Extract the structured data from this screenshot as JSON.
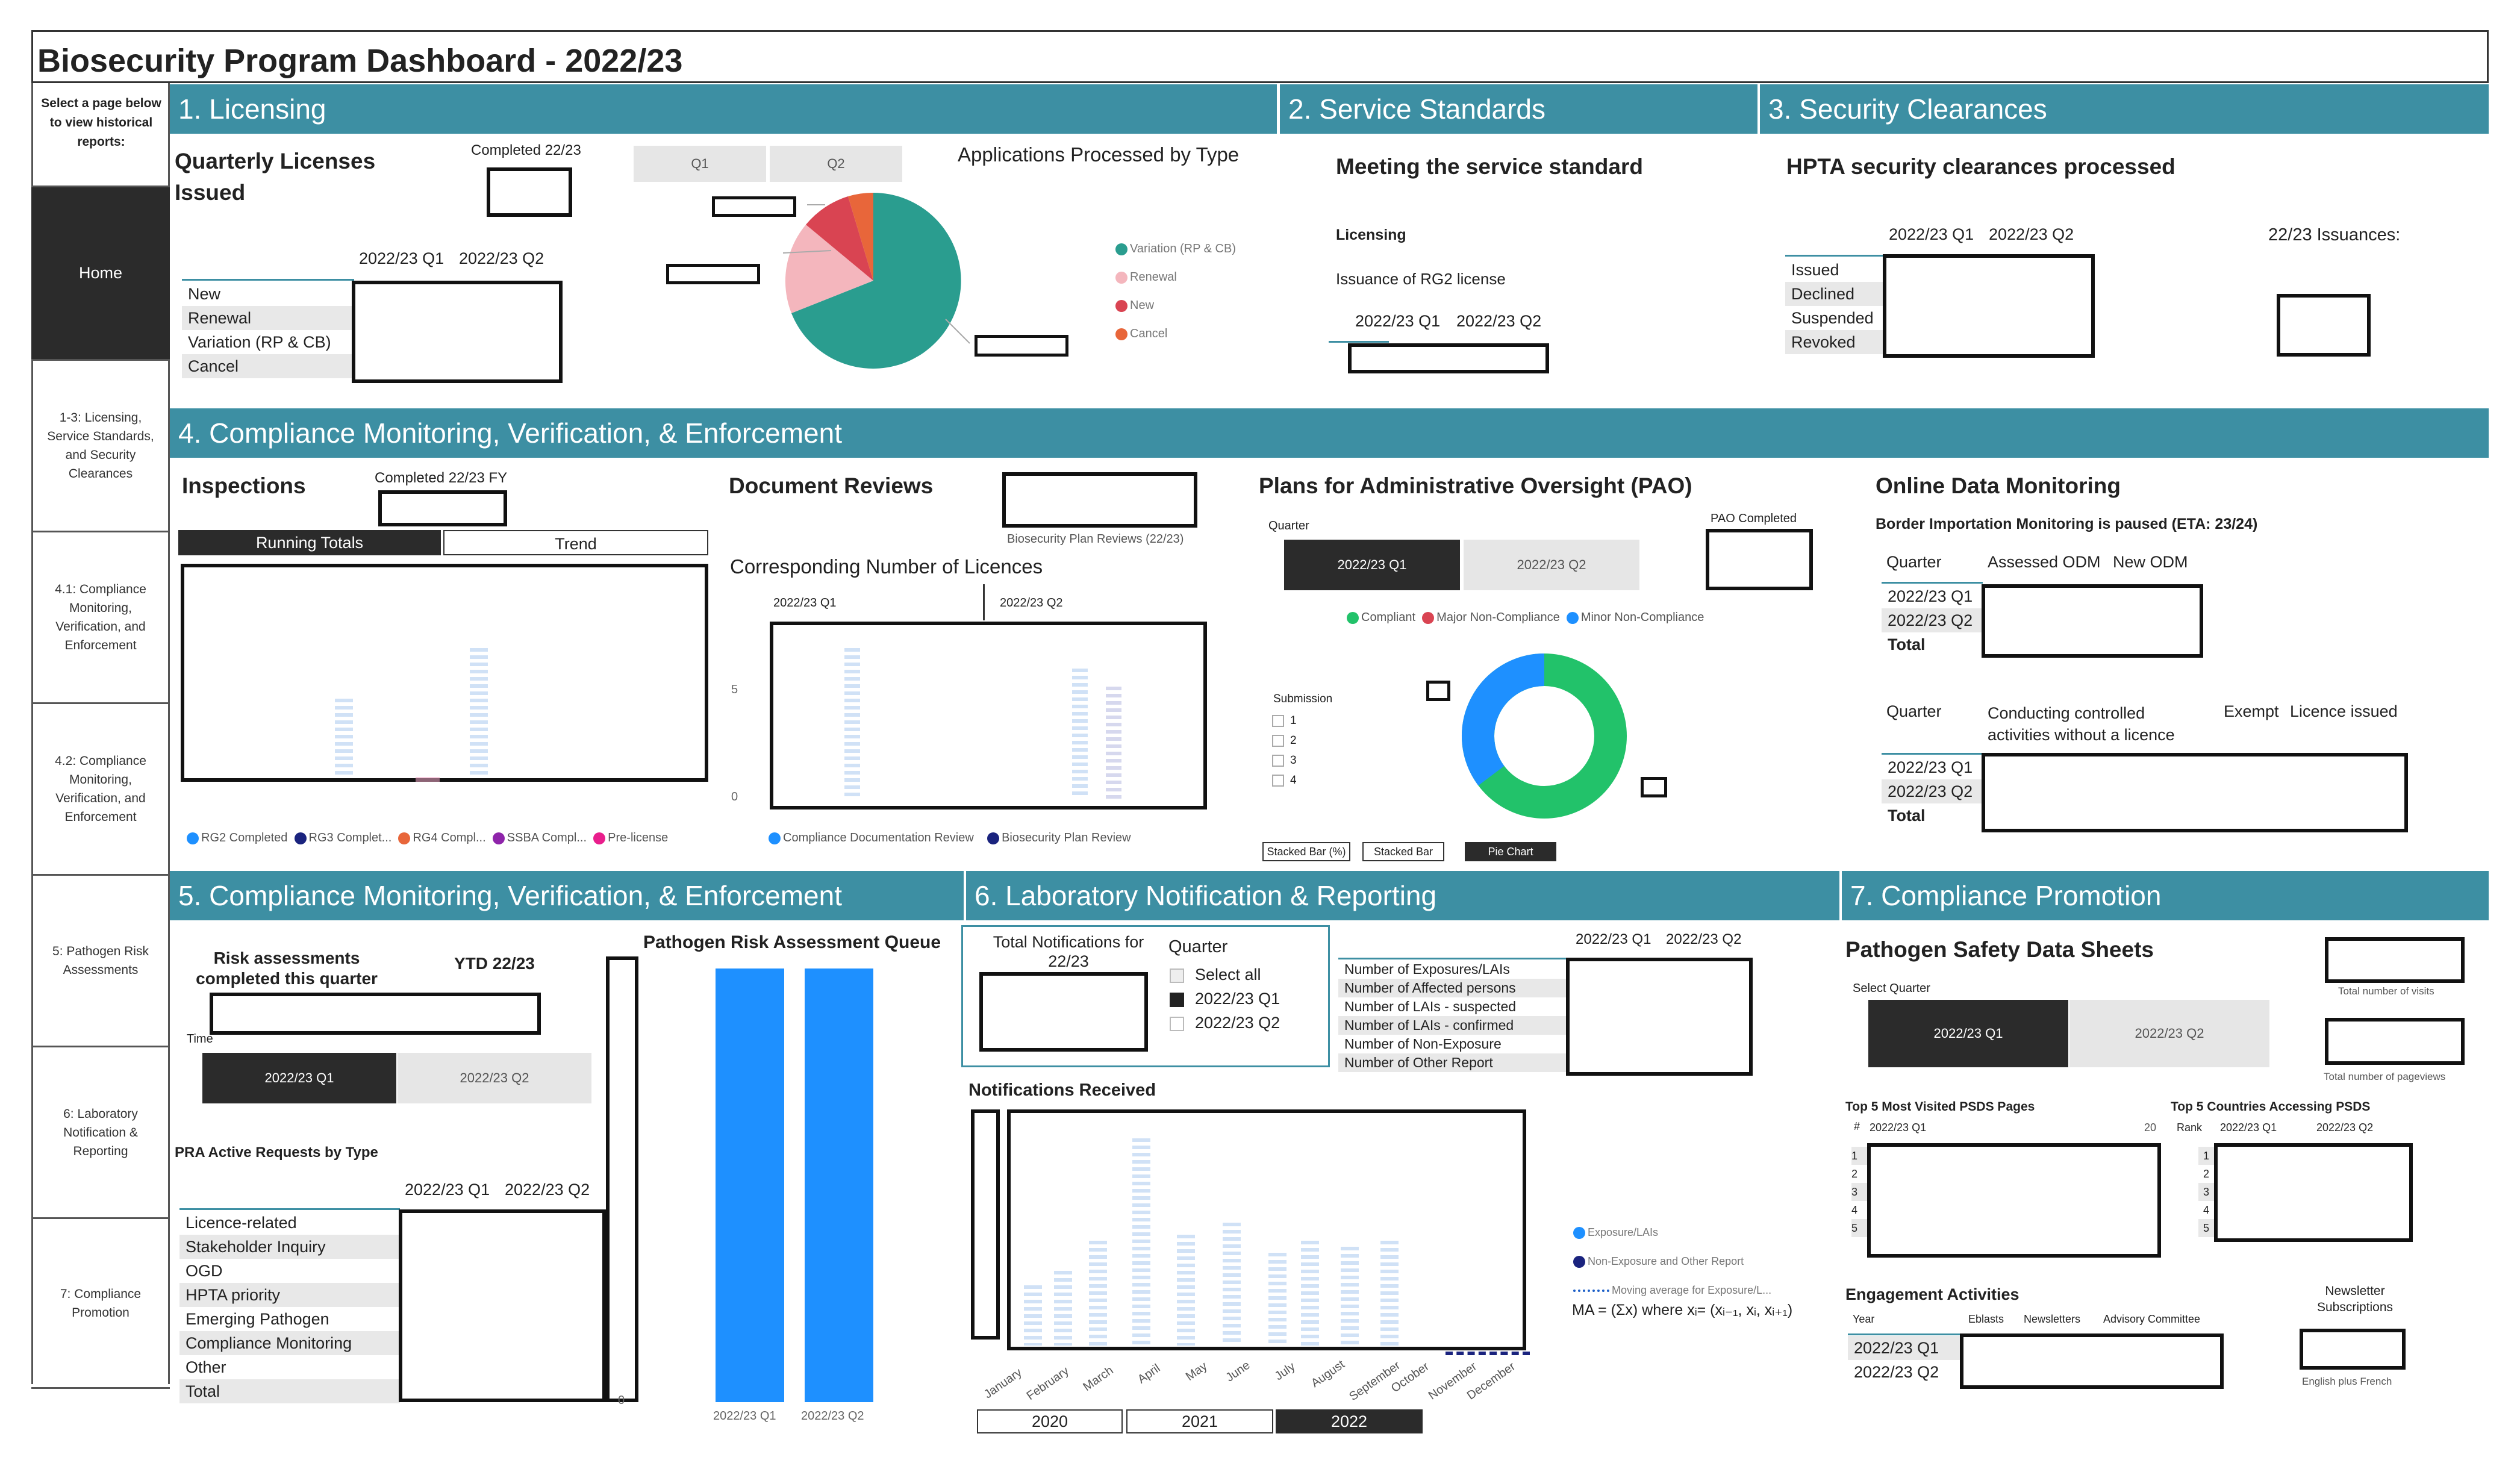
{
  "title": "Biosecurity Program Dashboard - 2022/23",
  "nav": {
    "intro": "Select a page below to view historical reports:",
    "items": [
      "Home",
      "1-3: Licensing, Service Standards, and Security Clearances",
      "4.1: Compliance Monitoring, Verification, and Enforcement",
      "4.2: Compliance Monitoring, Verification, and Enforcement",
      "5: Pathogen Risk Assessments",
      "6: Laboratory Notification & Reporting",
      "7: Compliance Promotion"
    ]
  },
  "s1": {
    "band": "1. Licensing",
    "heading": "Quarterly Licenses Issued",
    "completed": "Completed 22/23",
    "q1": "2022/23 Q1",
    "q2": "2022/23 Q2",
    "rows": [
      "New",
      "Renewal",
      "Variation (RP & CB)",
      "Cancel"
    ],
    "slicer": [
      "Q1",
      "Q2"
    ],
    "pie_title": "Applications Processed by Type",
    "legend": [
      "Variation (RP & CB)",
      "Renewal",
      "New",
      "Cancel"
    ]
  },
  "s2": {
    "band": "2. Service Standards",
    "heading": "Meeting the service standard",
    "sub": "Licensing",
    "desc": "Issuance of RG2 license",
    "q1": "2022/23 Q1",
    "q2": "2022/23 Q2"
  },
  "s3": {
    "band": "3. Security Clearances",
    "heading": "HPTA security clearances processed",
    "q1": "2022/23 Q1",
    "q2": "2022/23 Q2",
    "issuances": "22/23 Issuances:",
    "rows": [
      "Issued",
      "Declined",
      "Suspended",
      "Revoked"
    ]
  },
  "s4": {
    "band": "4. Compliance Monitoring, Verification, & Enforcement",
    "insp": "Inspections",
    "completed_fy": "Completed 22/23 FY",
    "tabs": [
      "Running Totals",
      "Trend"
    ],
    "insp_legend": [
      "RG2 Completed",
      "RG3 Complet...",
      "RG4 Compl...",
      "SSBA Compl...",
      "Pre-license"
    ],
    "docrev": "Document Reviews",
    "bpr": "Biosecurity Plan Reviews (22/23)",
    "corr": "Corresponding Number of Licences",
    "dq1": "2022/23 Q1",
    "dq2": "2022/23 Q2",
    "y5": "5",
    "y0": "0",
    "doc_legend": [
      "Compliance Documentation Review",
      "Biosecurity Plan Review"
    ],
    "pao": "Plans for Administrative Oversight (PAO)",
    "quarter": "Quarter",
    "pq1": "2022/23 Q1",
    "pq2": "2022/23 Q2",
    "pao_done": "PAO Completed",
    "pao_legend": [
      "Compliant",
      "Major Non-Compliance",
      "Minor Non-Compliance"
    ],
    "submission": "Submission",
    "subs": [
      "1",
      "2",
      "3",
      "4"
    ],
    "viz": [
      "Stacked Bar (%)",
      "Stacked Bar",
      "Pie Chart"
    ],
    "odm": "Online Data Monitoring",
    "odm_sub": "Border Importation Monitoring is paused (ETA: 23/24)",
    "odm_h": [
      "Quarter",
      "Assessed ODM",
      "New ODM"
    ],
    "odm_rows": [
      "2022/23 Q1",
      "2022/23 Q2",
      "Total"
    ],
    "odm2_h": [
      "Quarter",
      "Conducting controlled activities without a licence",
      "Exempt",
      "Licence issued"
    ]
  },
  "s5": {
    "band": "5. Compliance Monitoring, Verification, & Enforcement",
    "risk": "Risk assessments completed this quarter",
    "ytd": "YTD 22/23",
    "time": "Time",
    "tq1": "2022/23 Q1",
    "tq2": "2022/23 Q2",
    "pra": "PRA Active Requests by Type",
    "q1": "2022/23 Q1",
    "q2": "2022/23 Q2",
    "rows": [
      "Licence-related",
      "Stakeholder Inquiry",
      "OGD",
      "HPTA priority",
      "Emerging Pathogen",
      "Compliance Monitoring",
      "Other",
      "Total"
    ],
    "queue": "Pathogen Risk Assessment Queue",
    "zero": "0",
    "bars": [
      "2022/23 Q1",
      "2022/23 Q2"
    ]
  },
  "s6": {
    "band": "6. Laboratory Notification & Reporting",
    "total": "Total Notifications for 22/23",
    "quarter": "Quarter",
    "opts": [
      "Select all",
      "2022/23 Q1",
      "2022/23 Q2"
    ],
    "q1": "2022/23 Q1",
    "q2": "2022/23 Q2",
    "rows": [
      "Number of Exposures/LAIs",
      "Number of Affected persons",
      "Number of LAIs - suspected",
      "Number of LAIs - confirmed",
      "Number of Non-Exposure",
      "Number of Other Report"
    ],
    "notif": "Notifications Received",
    "months": [
      "January",
      "February",
      "March",
      "April",
      "May",
      "June",
      "July",
      "August",
      "September",
      "October",
      "November",
      "December"
    ],
    "legend": [
      "Exposure/LAIs",
      "Non-Exposure and Other Report",
      "Moving average for Exposure/L..."
    ],
    "ma": "MA = (Σx) where xᵢ= (xᵢ₋₁, xᵢ, xᵢ₊₁)",
    "years": [
      "2020",
      "2021",
      "2022"
    ]
  },
  "s7": {
    "band": "7. Compliance Promotion",
    "psds": "Pathogen Safety Data Sheets",
    "visits": "Total number of visits",
    "pageviews": "Total number of pageviews",
    "select": "Select Quarter",
    "sq1": "2022/23 Q1",
    "sq2": "2022/23 Q2",
    "top5": "Top 5 Most Visited PSDS Pages",
    "top5c": "Top 5 Countries Accessing PSDS",
    "hash": "#",
    "tq1": "2022/23 Q1",
    "cut": "20",
    "rank": "Rank",
    "cq1": "2022/23 Q1",
    "cq2": "2022/23 Q2",
    "nums": [
      "1",
      "2",
      "3",
      "4",
      "5"
    ],
    "eng": "Engagement Activities",
    "news": "Newsletter Subscriptions",
    "eh": [
      "Year",
      "Eblasts",
      "Newsletters",
      "Advisory Committee"
    ],
    "erows": [
      "2022/23 Q1",
      "2022/23 Q2"
    ],
    "enfr": "English plus French"
  },
  "colors": {
    "teal": "#3d8fa3",
    "pieTeal": "#2a9d8f",
    "pink": "#f4b6bd",
    "red": "#d94452",
    "orange": "#e8663a",
    "blue": "#1e90ff",
    "green": "#22c26a",
    "navy": "#1a237e"
  }
}
